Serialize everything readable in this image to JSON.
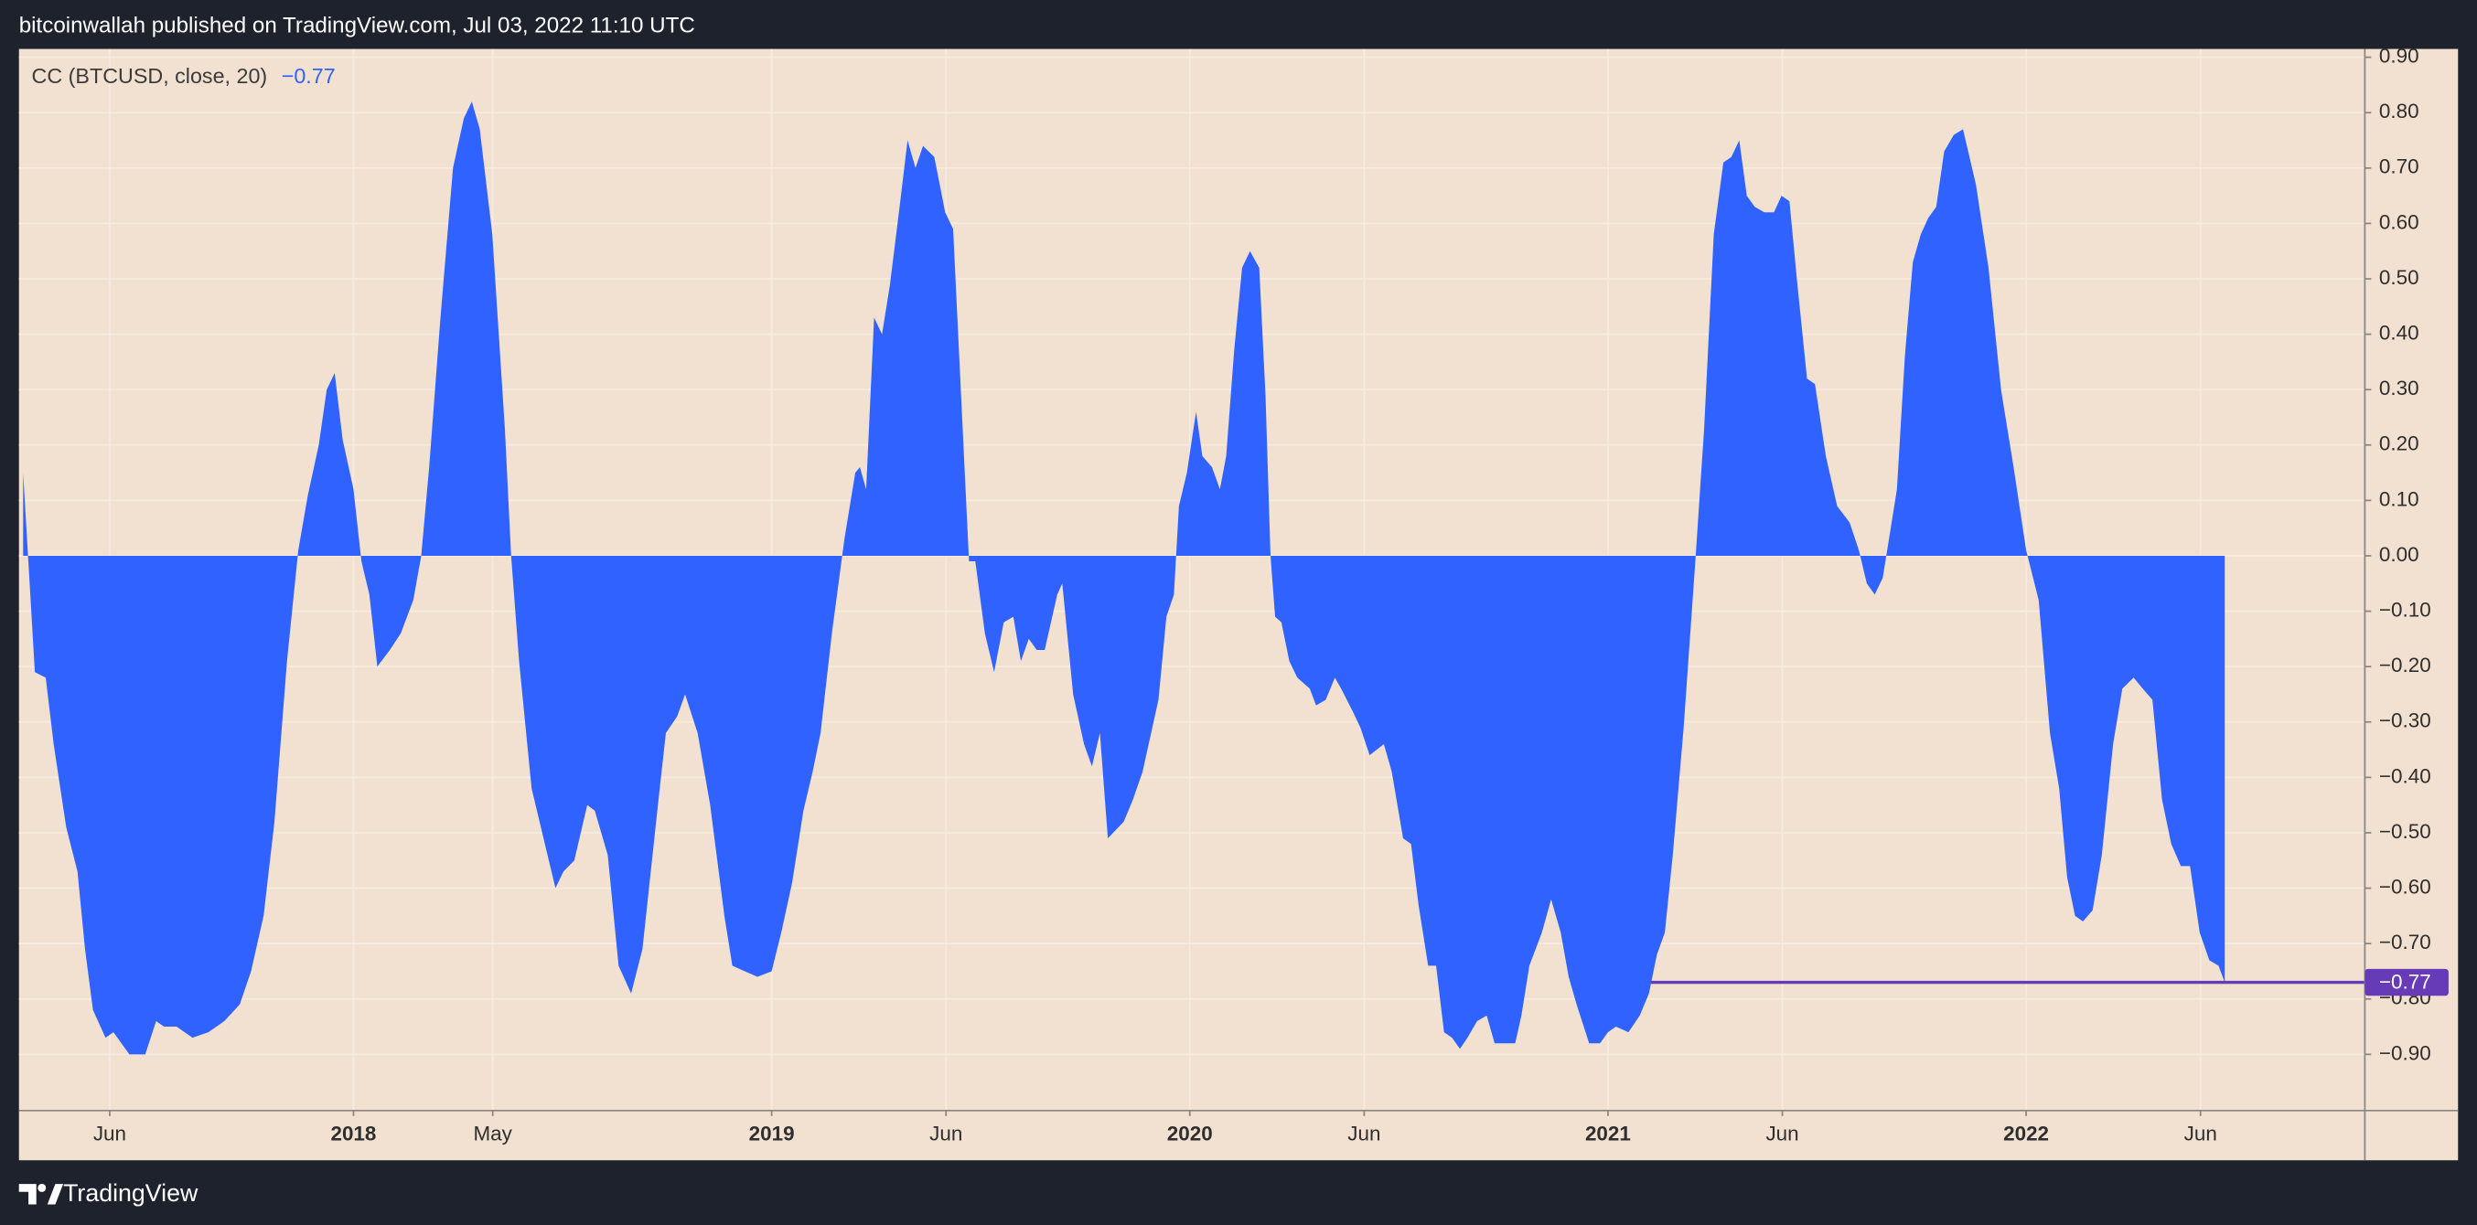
{
  "chart_data": {
    "type": "area",
    "header": "bitcoinwallah published on TradingView.com, Jul 03, 2022 11:10 UTC",
    "brand": "TradingView",
    "x": [
      2017.21,
      2017.238,
      2017.264,
      2017.283,
      2017.313,
      2017.34,
      2017.358,
      2017.377,
      2017.407,
      2017.426,
      2017.464,
      2017.502,
      2017.528,
      2017.547,
      2017.577,
      2017.615,
      2017.653,
      2017.691,
      2017.728,
      2017.755,
      2017.785,
      2017.811,
      2017.841,
      2017.868,
      2017.891,
      2017.917,
      2017.936,
      2017.955,
      2017.974,
      2018.0,
      2018.019,
      2018.038,
      2018.057,
      2018.087,
      2018.113,
      2018.143,
      2018.162,
      2018.181,
      2018.208,
      2018.238,
      2018.264,
      2018.283,
      2018.302,
      2018.332,
      2018.362,
      2018.377,
      2018.396,
      2018.426,
      2018.464,
      2018.483,
      2018.502,
      2018.528,
      2018.559,
      2018.577,
      2018.608,
      2018.634,
      2018.664,
      2018.691,
      2018.728,
      2018.747,
      2018.774,
      2018.793,
      2018.823,
      2018.853,
      2018.887,
      2018.906,
      2018.936,
      2018.966,
      2019.0,
      2019.023,
      2019.049,
      2019.076,
      2019.098,
      2019.117,
      2019.144,
      2019.174,
      2019.2,
      2019.211,
      2019.226,
      2019.245,
      2019.264,
      2019.283,
      2019.306,
      2019.325,
      2019.344,
      2019.362,
      2019.389,
      2019.415,
      2019.434,
      2019.453,
      2019.472,
      2019.487,
      2019.51,
      2019.532,
      2019.555,
      2019.578,
      2019.596,
      2019.615,
      2019.634,
      2019.653,
      2019.683,
      2019.695,
      2019.721,
      2019.747,
      2019.766,
      2019.785,
      2019.804,
      2019.842,
      2019.864,
      2019.887,
      2019.925,
      2019.944,
      2019.962,
      2019.974,
      2019.993,
      2020.015,
      2020.03,
      2020.053,
      2020.072,
      2020.087,
      2020.106,
      2020.125,
      2020.144,
      2020.166,
      2020.181,
      2020.193,
      2020.204,
      2020.219,
      2020.238,
      2020.257,
      2020.287,
      2020.302,
      2020.325,
      2020.347,
      2020.362,
      2020.389,
      2020.408,
      2020.43,
      2020.464,
      2020.483,
      2020.51,
      2020.529,
      2020.547,
      2020.57,
      2020.589,
      2020.608,
      2020.627,
      2020.646,
      2020.664,
      2020.687,
      2020.71,
      2020.729,
      2020.747,
      2020.778,
      2020.793,
      2020.812,
      2020.842,
      2020.864,
      2020.887,
      2020.906,
      2020.925,
      2020.955,
      2020.981,
      2021.0,
      2021.019,
      2021.049,
      2021.076,
      2021.098,
      2021.117,
      2021.136,
      2021.155,
      2021.181,
      2021.208,
      2021.23,
      2021.253,
      2021.276,
      2021.295,
      2021.314,
      2021.332,
      2021.351,
      2021.374,
      2021.397,
      2021.415,
      2021.434,
      2021.453,
      2021.476,
      2021.495,
      2021.521,
      2021.548,
      2021.578,
      2021.6,
      2021.619,
      2021.638,
      2021.657,
      2021.672,
      2021.691,
      2021.71,
      2021.729,
      2021.748,
      2021.766,
      2021.785,
      2021.804,
      2021.827,
      2021.849,
      2021.88,
      2021.91,
      2021.94,
      2021.97,
      2022.0,
      2022.03,
      2022.057,
      2022.079,
      2022.098,
      2022.117,
      2022.136,
      2022.159,
      2022.181,
      2022.208,
      2022.23,
      2022.257,
      2022.279,
      2022.302,
      2022.325,
      2022.347,
      2022.37,
      2022.392,
      2022.415,
      2022.438,
      2022.46,
      2022.475
    ],
    "series": [
      {
        "name": "CC (BTCUSD, close, 20)",
        "color": "#2f62ff",
        "last_label": "−0.77",
        "values": [
          0.15,
          -0.21,
          -0.22,
          -0.34,
          -0.49,
          -0.57,
          -0.71,
          -0.82,
          -0.87,
          -0.86,
          -0.9,
          -0.9,
          -0.84,
          -0.85,
          -0.85,
          -0.87,
          -0.86,
          -0.84,
          -0.81,
          -0.75,
          -0.65,
          -0.48,
          -0.19,
          0.01,
          0.11,
          0.2,
          0.3,
          0.33,
          0.21,
          0.12,
          -0.01,
          -0.07,
          -0.2,
          -0.17,
          -0.14,
          -0.08,
          0.0,
          0.16,
          0.43,
          0.7,
          0.79,
          0.82,
          0.77,
          0.58,
          0.23,
          0.0,
          -0.19,
          -0.42,
          -0.54,
          -0.6,
          -0.57,
          -0.55,
          -0.45,
          -0.46,
          -0.54,
          -0.74,
          -0.79,
          -0.71,
          -0.45,
          -0.32,
          -0.29,
          -0.25,
          -0.32,
          -0.45,
          -0.65,
          -0.74,
          -0.75,
          -0.76,
          -0.75,
          -0.68,
          -0.59,
          -0.46,
          -0.39,
          -0.32,
          -0.14,
          0.03,
          0.15,
          0.16,
          0.12,
          0.43,
          0.4,
          0.49,
          0.63,
          0.75,
          0.7,
          0.74,
          0.72,
          0.62,
          0.59,
          0.29,
          -0.01,
          -0.01,
          -0.14,
          -0.21,
          -0.12,
          -0.11,
          -0.19,
          -0.15,
          -0.17,
          -0.17,
          -0.07,
          -0.05,
          -0.25,
          -0.34,
          -0.38,
          -0.32,
          -0.51,
          -0.48,
          -0.44,
          -0.39,
          -0.26,
          -0.11,
          -0.07,
          0.09,
          0.15,
          0.26,
          0.18,
          0.16,
          0.12,
          0.18,
          0.37,
          0.52,
          0.55,
          0.52,
          0.29,
          0.0,
          -0.11,
          -0.12,
          -0.19,
          -0.22,
          -0.24,
          -0.27,
          -0.26,
          -0.22,
          -0.24,
          -0.28,
          -0.31,
          -0.36,
          -0.34,
          -0.39,
          -0.51,
          -0.52,
          -0.63,
          -0.74,
          -0.74,
          -0.86,
          -0.87,
          -0.89,
          -0.87,
          -0.84,
          -0.83,
          -0.88,
          -0.88,
          -0.88,
          -0.83,
          -0.74,
          -0.68,
          -0.62,
          -0.68,
          -0.76,
          -0.81,
          -0.88,
          -0.88,
          -0.86,
          -0.85,
          -0.86,
          -0.83,
          -0.79,
          -0.72,
          -0.68,
          -0.54,
          -0.31,
          -0.02,
          0.23,
          0.58,
          0.71,
          0.72,
          0.75,
          0.65,
          0.63,
          0.62,
          0.62,
          0.65,
          0.64,
          0.49,
          0.32,
          0.31,
          0.18,
          0.09,
          0.06,
          0.01,
          -0.05,
          -0.07,
          -0.04,
          0.03,
          0.12,
          0.36,
          0.53,
          0.58,
          0.61,
          0.63,
          0.73,
          0.76,
          0.77,
          0.67,
          0.52,
          0.3,
          0.16,
          0.01,
          -0.08,
          -0.32,
          -0.42,
          -0.58,
          -0.65,
          -0.66,
          -0.64,
          -0.54,
          -0.34,
          -0.24,
          -0.22,
          -0.24,
          -0.26,
          -0.44,
          -0.52,
          -0.56,
          -0.56,
          -0.68,
          -0.73,
          -0.74,
          -0.77
        ]
      }
    ],
    "price_line_color": "#673ab7",
    "xlim": [
      2017.2,
      2022.81
    ],
    "ylim": [
      -1.0,
      0.915
    ],
    "xticks": [
      {
        "value": 2017.417,
        "label": "Jun"
      },
      {
        "value": 2018,
        "label": "2018"
      },
      {
        "value": 2018.333,
        "label": "May"
      },
      {
        "value": 2019,
        "label": "2019"
      },
      {
        "value": 2019.417,
        "label": "Jun"
      },
      {
        "value": 2020,
        "label": "2020"
      },
      {
        "value": 2020.417,
        "label": "Jun"
      },
      {
        "value": 2021,
        "label": "2021"
      },
      {
        "value": 2021.417,
        "label": "Jun"
      },
      {
        "value": 2022,
        "label": "2022"
      },
      {
        "value": 2022.417,
        "label": "Jun"
      }
    ],
    "yticks": [
      {
        "value": 0.9,
        "label": "0.90"
      },
      {
        "value": 0.8,
        "label": "0.80"
      },
      {
        "value": 0.7,
        "label": "0.70"
      },
      {
        "value": 0.6,
        "label": "0.60"
      },
      {
        "value": 0.5,
        "label": "0.50"
      },
      {
        "value": 0.4,
        "label": "0.40"
      },
      {
        "value": 0.3,
        "label": "0.30"
      },
      {
        "value": 0.2,
        "label": "0.20"
      },
      {
        "value": 0.1,
        "label": "0.10"
      },
      {
        "value": 0,
        "label": "0.00"
      },
      {
        "value": -0.1,
        "label": "−0.10"
      },
      {
        "value": -0.2,
        "label": "−0.20"
      },
      {
        "value": -0.3,
        "label": "−0.30"
      },
      {
        "value": -0.4,
        "label": "−0.40"
      },
      {
        "value": -0.5,
        "label": "−0.50"
      },
      {
        "value": -0.6,
        "label": "−0.60"
      },
      {
        "value": -0.7,
        "label": "−0.70"
      },
      {
        "value": -0.8,
        "label": "−0.80"
      },
      {
        "value": -0.9,
        "label": "−0.90"
      }
    ],
    "grid": true
  }
}
